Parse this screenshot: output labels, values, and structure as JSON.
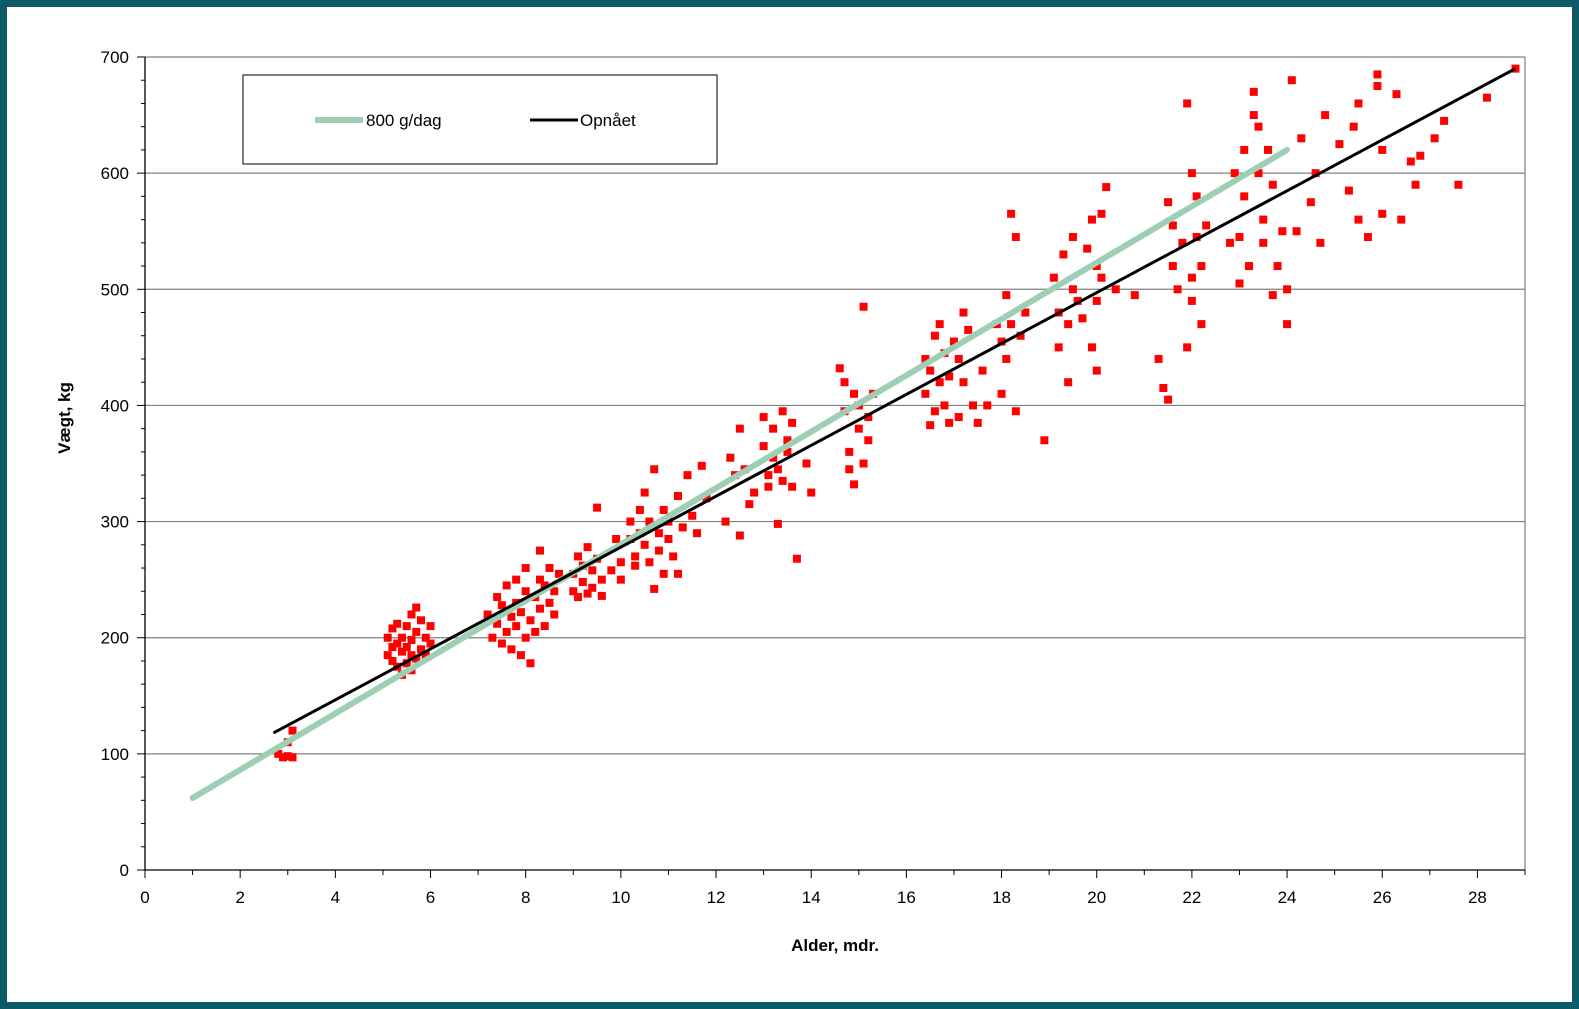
{
  "colors": {
    "frame": "#0b5a66",
    "gridline": "#808080",
    "scatter": "#ff0000",
    "target_line": "#9ccfb4",
    "achieved_line": "#000000"
  },
  "chart_data": {
    "type": "scatter",
    "title": "",
    "xlabel": "Alder, mdr.",
    "ylabel": "Vægt, kg",
    "xlim": [
      0,
      29
    ],
    "ylim": [
      0,
      700
    ],
    "x_ticks": [
      "0",
      "2",
      "4",
      "6",
      "8",
      "10",
      "12",
      "14",
      "16",
      "18",
      "20",
      "22",
      "24",
      "26",
      "28"
    ],
    "y_ticks": [
      "0",
      "100",
      "200",
      "300",
      "400",
      "500",
      "600",
      "700"
    ],
    "grid": "horizontal",
    "legend_position": "top-left",
    "lines": [
      {
        "name": "800 g/dag",
        "x": [
          1.0,
          24.0
        ],
        "y": [
          62,
          620
        ]
      },
      {
        "name": "Opnået",
        "x": [
          2.7,
          28.8
        ],
        "y": [
          118,
          690
        ]
      }
    ],
    "scatter_series": {
      "points": [
        [
          2.8,
          100
        ],
        [
          2.9,
          97
        ],
        [
          3.0,
          110
        ],
        [
          3.0,
          98
        ],
        [
          3.1,
          120
        ],
        [
          3.1,
          97
        ],
        [
          5.1,
          200
        ],
        [
          5.1,
          185
        ],
        [
          5.2,
          192
        ],
        [
          5.2,
          180
        ],
        [
          5.2,
          208
        ],
        [
          5.3,
          175
        ],
        [
          5.3,
          195
        ],
        [
          5.3,
          212
        ],
        [
          5.4,
          168
        ],
        [
          5.4,
          188
        ],
        [
          5.4,
          200
        ],
        [
          5.5,
          178
        ],
        [
          5.5,
          192
        ],
        [
          5.5,
          210
        ],
        [
          5.6,
          172
        ],
        [
          5.6,
          185
        ],
        [
          5.6,
          198
        ],
        [
          5.6,
          220
        ],
        [
          5.7,
          182
        ],
        [
          5.7,
          205
        ],
        [
          5.7,
          226
        ],
        [
          5.8,
          190
        ],
        [
          5.8,
          215
        ],
        [
          5.9,
          200
        ],
        [
          5.9,
          185
        ],
        [
          6.0,
          210
        ],
        [
          6.0,
          195
        ],
        [
          7.2,
          220
        ],
        [
          7.3,
          200
        ],
        [
          7.4,
          235
        ],
        [
          7.4,
          212
        ],
        [
          7.5,
          195
        ],
        [
          7.5,
          228
        ],
        [
          7.6,
          245
        ],
        [
          7.6,
          205
        ],
        [
          7.7,
          218
        ],
        [
          7.7,
          190
        ],
        [
          7.8,
          230
        ],
        [
          7.8,
          250
        ],
        [
          7.8,
          210
        ],
        [
          7.9,
          185
        ],
        [
          7.9,
          222
        ],
        [
          8.0,
          240
        ],
        [
          8.0,
          200
        ],
        [
          8.0,
          260
        ],
        [
          8.1,
          215
        ],
        [
          8.1,
          178
        ],
        [
          8.2,
          235
        ],
        [
          8.2,
          205
        ],
        [
          8.3,
          250
        ],
        [
          8.3,
          275
        ],
        [
          8.3,
          225
        ],
        [
          8.4,
          245
        ],
        [
          8.4,
          210
        ],
        [
          8.5,
          230
        ],
        [
          8.5,
          260
        ],
        [
          8.6,
          220
        ],
        [
          8.6,
          240
        ],
        [
          8.7,
          255
        ],
        [
          9.0,
          240
        ],
        [
          9.0,
          255
        ],
        [
          9.1,
          270
        ],
        [
          9.1,
          235
        ],
        [
          9.2,
          262
        ],
        [
          9.2,
          248
        ],
        [
          9.3,
          238
        ],
        [
          9.3,
          278
        ],
        [
          9.4,
          258
        ],
        [
          9.4,
          243
        ],
        [
          9.5,
          312
        ],
        [
          9.5,
          268
        ],
        [
          9.6,
          236
        ],
        [
          9.6,
          250
        ],
        [
          9.8,
          258
        ],
        [
          9.9,
          285
        ],
        [
          10.0,
          265
        ],
        [
          10.0,
          250
        ],
        [
          10.2,
          285
        ],
        [
          10.2,
          300
        ],
        [
          10.3,
          270
        ],
        [
          10.3,
          262
        ],
        [
          10.4,
          310
        ],
        [
          10.4,
          290
        ],
        [
          10.5,
          280
        ],
        [
          10.5,
          325
        ],
        [
          10.6,
          300
        ],
        [
          10.6,
          265
        ],
        [
          10.7,
          345
        ],
        [
          10.7,
          242
        ],
        [
          10.8,
          290
        ],
        [
          10.8,
          275
        ],
        [
          10.9,
          310
        ],
        [
          10.9,
          255
        ],
        [
          11.0,
          300
        ],
        [
          11.0,
          285
        ],
        [
          11.1,
          270
        ],
        [
          11.2,
          322
        ],
        [
          11.2,
          255
        ],
        [
          11.3,
          295
        ],
        [
          11.4,
          340
        ],
        [
          11.5,
          305
        ],
        [
          11.6,
          290
        ],
        [
          11.7,
          348
        ],
        [
          11.8,
          320
        ],
        [
          12.2,
          300
        ],
        [
          12.3,
          355
        ],
        [
          12.4,
          340
        ],
        [
          12.5,
          288
        ],
        [
          12.5,
          380
        ],
        [
          12.6,
          345
        ],
        [
          12.7,
          315
        ],
        [
          12.8,
          325
        ],
        [
          13.0,
          365
        ],
        [
          13.0,
          390
        ],
        [
          13.1,
          340
        ],
        [
          13.1,
          330
        ],
        [
          13.2,
          380
        ],
        [
          13.2,
          355
        ],
        [
          13.3,
          345
        ],
        [
          13.3,
          298
        ],
        [
          13.4,
          395
        ],
        [
          13.4,
          335
        ],
        [
          13.5,
          370
        ],
        [
          13.5,
          360
        ],
        [
          13.6,
          330
        ],
        [
          13.6,
          385
        ],
        [
          13.7,
          268
        ],
        [
          13.9,
          350
        ],
        [
          14.0,
          325
        ],
        [
          14.6,
          432
        ],
        [
          14.7,
          420
        ],
        [
          14.7,
          395
        ],
        [
          14.8,
          360
        ],
        [
          14.8,
          345
        ],
        [
          14.9,
          332
        ],
        [
          14.9,
          410
        ],
        [
          15.0,
          400
        ],
        [
          15.0,
          380
        ],
        [
          15.1,
          350
        ],
        [
          15.1,
          485
        ],
        [
          15.2,
          390
        ],
        [
          15.2,
          370
        ],
        [
          15.3,
          410
        ],
        [
          16.4,
          440
        ],
        [
          16.4,
          410
        ],
        [
          16.5,
          430
        ],
        [
          16.5,
          383
        ],
        [
          16.6,
          460
        ],
        [
          16.6,
          395
        ],
        [
          16.7,
          420
        ],
        [
          16.7,
          470
        ],
        [
          16.8,
          400
        ],
        [
          16.8,
          445
        ],
        [
          16.9,
          385
        ],
        [
          16.9,
          425
        ],
        [
          17.0,
          455
        ],
        [
          17.1,
          390
        ],
        [
          17.1,
          440
        ],
        [
          17.2,
          480
        ],
        [
          17.2,
          420
        ],
        [
          17.3,
          465
        ],
        [
          17.4,
          400
        ],
        [
          17.5,
          385
        ],
        [
          17.6,
          430
        ],
        [
          17.7,
          400
        ],
        [
          17.9,
          470
        ],
        [
          18.0,
          455
        ],
        [
          18.0,
          410
        ],
        [
          18.1,
          495
        ],
        [
          18.1,
          440
        ],
        [
          18.2,
          470
        ],
        [
          18.2,
          565
        ],
        [
          18.3,
          545
        ],
        [
          18.3,
          395
        ],
        [
          18.4,
          460
        ],
        [
          18.5,
          480
        ],
        [
          18.9,
          370
        ],
        [
          19.1,
          510
        ],
        [
          19.2,
          450
        ],
        [
          19.2,
          480
        ],
        [
          19.3,
          530
        ],
        [
          19.4,
          470
        ],
        [
          19.4,
          420
        ],
        [
          19.5,
          545
        ],
        [
          19.5,
          500
        ],
        [
          19.6,
          490
        ],
        [
          19.7,
          475
        ],
        [
          19.8,
          535
        ],
        [
          19.9,
          450
        ],
        [
          19.9,
          560
        ],
        [
          20.0,
          520
        ],
        [
          20.0,
          430
        ],
        [
          20.0,
          490
        ],
        [
          20.1,
          565
        ],
        [
          20.1,
          510
        ],
        [
          20.2,
          588
        ],
        [
          20.4,
          500
        ],
        [
          20.8,
          495
        ],
        [
          21.3,
          440
        ],
        [
          21.4,
          415
        ],
        [
          21.5,
          405
        ],
        [
          21.5,
          575
        ],
        [
          21.6,
          520
        ],
        [
          21.6,
          555
        ],
        [
          21.7,
          500
        ],
        [
          21.8,
          540
        ],
        [
          21.9,
          450
        ],
        [
          21.9,
          660
        ],
        [
          22.0,
          600
        ],
        [
          22.0,
          510
        ],
        [
          22.0,
          490
        ],
        [
          22.1,
          580
        ],
        [
          22.1,
          545
        ],
        [
          22.2,
          520
        ],
        [
          22.2,
          470
        ],
        [
          22.3,
          555
        ],
        [
          22.8,
          540
        ],
        [
          22.9,
          600
        ],
        [
          23.0,
          545
        ],
        [
          23.0,
          505
        ],
        [
          23.1,
          580
        ],
        [
          23.1,
          620
        ],
        [
          23.2,
          520
        ],
        [
          23.3,
          650
        ],
        [
          23.3,
          670
        ],
        [
          23.4,
          640
        ],
        [
          23.4,
          600
        ],
        [
          23.5,
          560
        ],
        [
          23.5,
          540
        ],
        [
          23.6,
          620
        ],
        [
          23.7,
          590
        ],
        [
          23.7,
          495
        ],
        [
          23.8,
          520
        ],
        [
          23.9,
          550
        ],
        [
          24.0,
          470
        ],
        [
          24.0,
          500
        ],
        [
          24.1,
          680
        ],
        [
          24.2,
          550
        ],
        [
          24.3,
          630
        ],
        [
          24.5,
          575
        ],
        [
          24.6,
          600
        ],
        [
          24.7,
          540
        ],
        [
          24.8,
          650
        ],
        [
          25.1,
          625
        ],
        [
          25.3,
          585
        ],
        [
          25.4,
          640
        ],
        [
          25.5,
          660
        ],
        [
          25.5,
          560
        ],
        [
          25.7,
          545
        ],
        [
          25.9,
          685
        ],
        [
          25.9,
          675
        ],
        [
          26.0,
          565
        ],
        [
          26.0,
          620
        ],
        [
          26.3,
          668
        ],
        [
          26.4,
          560
        ],
        [
          26.6,
          610
        ],
        [
          26.7,
          590
        ],
        [
          26.8,
          615
        ],
        [
          27.1,
          630
        ],
        [
          27.3,
          645
        ],
        [
          27.6,
          590
        ],
        [
          28.2,
          665
        ],
        [
          28.8,
          690
        ]
      ]
    }
  }
}
